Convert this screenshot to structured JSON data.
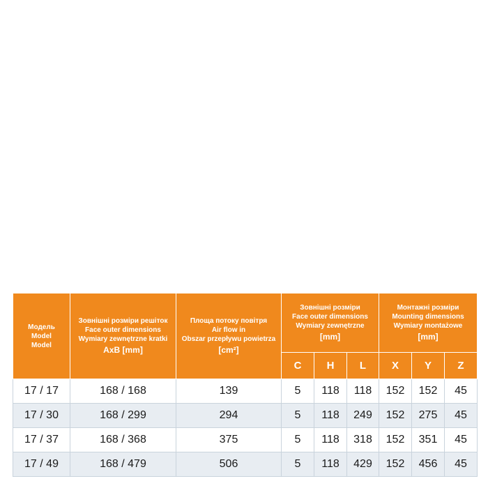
{
  "header": {
    "model": [
      "Модель",
      "Model",
      "Model"
    ],
    "face": [
      "Зовнішні розміри решіток",
      "Face outer dimensions",
      "Wymiary zewnętrzne kratki",
      "AxB [mm]"
    ],
    "airflow": [
      "Площа потоку повітря",
      "Air flow in",
      "Obszar przepływu powietrza",
      "[cm²]"
    ],
    "outer": [
      "Зовнішні розміри",
      "Face outer dimensions",
      "Wymiary zewnętrzne",
      "[mm]"
    ],
    "mounting": [
      "Монтажні розміри",
      "Mounting dimensions",
      "Wymiary montażowe",
      "[mm]"
    ],
    "columns": [
      "C",
      "H",
      "L",
      "X",
      "Y",
      "Z"
    ]
  },
  "rows": [
    [
      "17 / 17",
      "168 / 168",
      139,
      5,
      118,
      118,
      152,
      152,
      45
    ],
    [
      "17 / 30",
      "168 / 299",
      294,
      5,
      118,
      249,
      152,
      275,
      45
    ],
    [
      "17 / 37",
      "168 / 368",
      375,
      5,
      118,
      318,
      152,
      351,
      45
    ],
    [
      "17 / 49",
      "168 / 479",
      506,
      5,
      118,
      429,
      152,
      456,
      45
    ]
  ]
}
